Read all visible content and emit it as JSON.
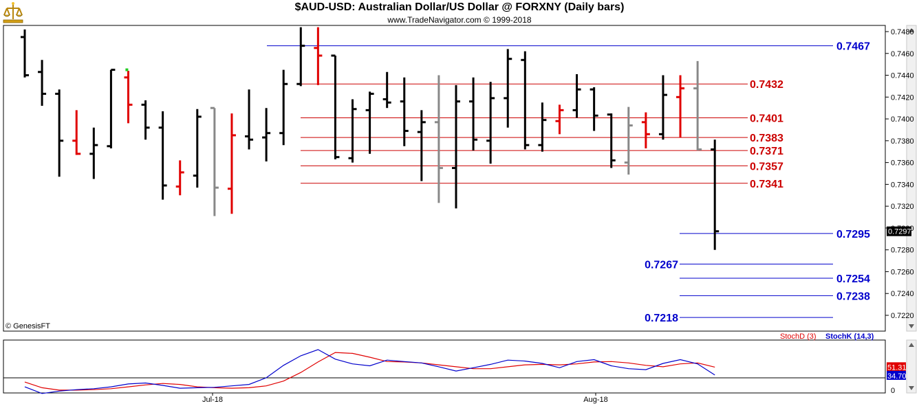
{
  "header": {
    "title": "$AUD-USD:  Australian Dollar/US Dollar @ FORXNY  (Daily bars)",
    "subtitle": "www.TradeNavigator.com © 1999-2018",
    "copyright": "© GenesisFT"
  },
  "colors": {
    "bar_default": "#000000",
    "bar_up": "#e00000",
    "bar_gray": "#888888",
    "level_blue": "#0000cc",
    "level_red": "#cc0000",
    "stoch_d": "#e00000",
    "stoch_k": "#0000cc",
    "last_price_bg": "#000000"
  },
  "chart_data": [
    {
      "type": "ohlc",
      "y_axis_ticks": [
        "0.7480",
        "0.7460",
        "0.7440",
        "0.7420",
        "0.7400",
        "0.7380",
        "0.7360",
        "0.7340",
        "0.7320",
        "0.7300",
        "0.7280",
        "0.7260",
        "0.7240",
        "0.7220"
      ],
      "ylim": [
        0.721,
        0.7487
      ],
      "last_price_label": "0.7297",
      "x_tick_labels": [
        "Jul-18",
        "Aug-18"
      ],
      "bars": [
        {
          "x": 1,
          "o": 0.7475,
          "h": 0.7482,
          "l": 0.7438,
          "c": 0.744,
          "color": "black"
        },
        {
          "x": 2,
          "o": 0.7443,
          "h": 0.7454,
          "l": 0.7412,
          "c": 0.7423,
          "color": "black"
        },
        {
          "x": 3,
          "o": 0.7423,
          "h": 0.7427,
          "l": 0.7347,
          "c": 0.738,
          "color": "black"
        },
        {
          "x": 4,
          "o": 0.738,
          "h": 0.7408,
          "l": 0.7367,
          "c": 0.7368,
          "color": "red"
        },
        {
          "x": 5,
          "o": 0.7368,
          "h": 0.7392,
          "l": 0.7345,
          "c": 0.7376,
          "color": "black"
        },
        {
          "x": 6,
          "o": 0.7375,
          "h": 0.7445,
          "l": 0.7373,
          "c": 0.7445,
          "color": "black"
        },
        {
          "x": 7,
          "o": 0.7438,
          "h": 0.7444,
          "l": 0.7396,
          "c": 0.7413,
          "color": "red"
        },
        {
          "x": 8,
          "o": 0.7413,
          "h": 0.7417,
          "l": 0.7381,
          "c": 0.7392,
          "color": "black"
        },
        {
          "x": 9,
          "o": 0.7392,
          "h": 0.7407,
          "l": 0.7326,
          "c": 0.7339,
          "color": "black"
        },
        {
          "x": 10,
          "o": 0.7338,
          "h": 0.7362,
          "l": 0.733,
          "c": 0.7351,
          "color": "red"
        },
        {
          "x": 11,
          "o": 0.7348,
          "h": 0.7409,
          "l": 0.7337,
          "c": 0.7402,
          "color": "black"
        },
        {
          "x": 12,
          "o": 0.741,
          "h": 0.741,
          "l": 0.7311,
          "c": 0.7337,
          "color": "gray"
        },
        {
          "x": 13,
          "o": 0.7336,
          "h": 0.7405,
          "l": 0.7313,
          "c": 0.7385,
          "color": "red"
        },
        {
          "x": 14,
          "o": 0.7384,
          "h": 0.7427,
          "l": 0.7372,
          "c": 0.7381,
          "color": "black"
        },
        {
          "x": 15,
          "o": 0.7383,
          "h": 0.741,
          "l": 0.7361,
          "c": 0.7387,
          "color": "black"
        },
        {
          "x": 16,
          "o": 0.7387,
          "h": 0.7445,
          "l": 0.7376,
          "c": 0.7432,
          "color": "black"
        },
        {
          "x": 17,
          "o": 0.7432,
          "h": 0.7484,
          "l": 0.743,
          "c": 0.7467,
          "color": "black"
        },
        {
          "x": 18,
          "o": 0.7465,
          "h": 0.7484,
          "l": 0.7431,
          "c": 0.7458,
          "color": "red"
        },
        {
          "x": 19,
          "o": 0.7458,
          "h": 0.7458,
          "l": 0.7363,
          "c": 0.7365,
          "color": "black"
        },
        {
          "x": 20,
          "o": 0.7364,
          "h": 0.7418,
          "l": 0.736,
          "c": 0.7409,
          "color": "black"
        },
        {
          "x": 21,
          "o": 0.7408,
          "h": 0.7425,
          "l": 0.7368,
          "c": 0.7423,
          "color": "black"
        },
        {
          "x": 22,
          "o": 0.7418,
          "h": 0.7443,
          "l": 0.741,
          "c": 0.7415,
          "color": "black"
        },
        {
          "x": 23,
          "o": 0.7416,
          "h": 0.7438,
          "l": 0.7375,
          "c": 0.7389,
          "color": "black"
        },
        {
          "x": 24,
          "o": 0.7388,
          "h": 0.7408,
          "l": 0.7343,
          "c": 0.7397,
          "color": "black"
        },
        {
          "x": 25,
          "o": 0.7397,
          "h": 0.744,
          "l": 0.7323,
          "c": 0.7355,
          "color": "gray"
        },
        {
          "x": 26,
          "o": 0.7355,
          "h": 0.7431,
          "l": 0.7318,
          "c": 0.7416,
          "color": "black"
        },
        {
          "x": 27,
          "o": 0.7416,
          "h": 0.7438,
          "l": 0.7371,
          "c": 0.7381,
          "color": "black"
        },
        {
          "x": 28,
          "o": 0.738,
          "h": 0.7434,
          "l": 0.7359,
          "c": 0.7419,
          "color": "black"
        },
        {
          "x": 29,
          "o": 0.7419,
          "h": 0.7464,
          "l": 0.7392,
          "c": 0.7455,
          "color": "black"
        },
        {
          "x": 30,
          "o": 0.7454,
          "h": 0.7462,
          "l": 0.7372,
          "c": 0.7376,
          "color": "black"
        },
        {
          "x": 31,
          "o": 0.7376,
          "h": 0.7415,
          "l": 0.737,
          "c": 0.7399,
          "color": "black"
        },
        {
          "x": 32,
          "o": 0.7398,
          "h": 0.7413,
          "l": 0.7386,
          "c": 0.7408,
          "color": "red"
        },
        {
          "x": 33,
          "o": 0.7408,
          "h": 0.7441,
          "l": 0.7401,
          "c": 0.7427,
          "color": "black"
        },
        {
          "x": 34,
          "o": 0.7427,
          "h": 0.7429,
          "l": 0.7389,
          "c": 0.7403,
          "color": "black"
        },
        {
          "x": 35,
          "o": 0.7404,
          "h": 0.7405,
          "l": 0.7355,
          "c": 0.7362,
          "color": "black"
        },
        {
          "x": 36,
          "o": 0.736,
          "h": 0.7411,
          "l": 0.7349,
          "c": 0.7394,
          "color": "gray"
        },
        {
          "x": 37,
          "o": 0.7397,
          "h": 0.7406,
          "l": 0.7373,
          "c": 0.7386,
          "color": "red"
        },
        {
          "x": 38,
          "o": 0.7386,
          "h": 0.744,
          "l": 0.7381,
          "c": 0.7422,
          "color": "black"
        },
        {
          "x": 39,
          "o": 0.742,
          "h": 0.744,
          "l": 0.7383,
          "c": 0.7428,
          "color": "red"
        },
        {
          "x": 40,
          "o": 0.7428,
          "h": 0.7453,
          "l": 0.7371,
          "c": 0.7372,
          "color": "gray"
        },
        {
          "x": 41,
          "o": 0.7372,
          "h": 0.7381,
          "l": 0.728,
          "c": 0.7297,
          "color": "black"
        }
      ],
      "levels": [
        {
          "value": 0.7467,
          "label": "0.7467",
          "color": "blue",
          "label_side": "right"
        },
        {
          "value": 0.7432,
          "label": "0.7432",
          "color": "red",
          "label_side": "right"
        },
        {
          "value": 0.7401,
          "label": "0.7401",
          "color": "red",
          "label_side": "right"
        },
        {
          "value": 0.7383,
          "label": "0.7383",
          "color": "red",
          "label_side": "right"
        },
        {
          "value": 0.7371,
          "label": "0.7371",
          "color": "red",
          "label_side": "right"
        },
        {
          "value": 0.7357,
          "label": "0.7357",
          "color": "red",
          "label_side": "right"
        },
        {
          "value": 0.7341,
          "label": "0.7341",
          "color": "red",
          "label_side": "right"
        },
        {
          "value": 0.7295,
          "label": "0.7295",
          "color": "blue",
          "label_side": "right"
        },
        {
          "value": 0.7267,
          "label": "0.7267",
          "color": "blue",
          "label_side": "left"
        },
        {
          "value": 0.7254,
          "label": "0.7254",
          "color": "blue",
          "label_side": "right"
        },
        {
          "value": 0.7238,
          "label": "0.7238",
          "color": "blue",
          "label_side": "right"
        },
        {
          "value": 0.7218,
          "label": "0.7218",
          "color": "blue",
          "label_side": "left"
        }
      ]
    },
    {
      "type": "line",
      "legend": [
        "StochD (3)",
        "StochK (14,3)"
      ],
      "ylim": [
        0,
        100
      ],
      "y_tick_labels": [
        "0"
      ],
      "last_value_labels": {
        "d": "51.31",
        "k": "34.70"
      },
      "series": [
        {
          "name": "StochD (3)",
          "color": "red",
          "values": [
            20,
            8,
            3,
            3,
            4,
            6,
            10,
            14,
            17,
            15,
            10,
            8,
            7,
            8,
            12,
            22,
            40,
            62,
            82,
            80,
            72,
            63,
            62,
            60,
            56,
            52,
            48,
            48,
            52,
            56,
            57,
            56,
            58,
            62,
            63,
            60,
            55,
            52,
            58,
            60,
            51.31
          ]
        },
        {
          "name": "StochK (14,3)",
          "color": "blue",
          "values": [
            10,
            -4,
            1,
            4,
            6,
            10,
            16,
            18,
            13,
            7,
            8,
            9,
            12,
            15,
            29,
            55,
            75,
            88,
            68,
            58,
            54,
            66,
            63,
            60,
            52,
            43,
            50,
            57,
            66,
            64,
            59,
            50,
            63,
            67,
            54,
            48,
            46,
            59,
            67,
            58,
            34.7
          ]
        }
      ]
    }
  ]
}
